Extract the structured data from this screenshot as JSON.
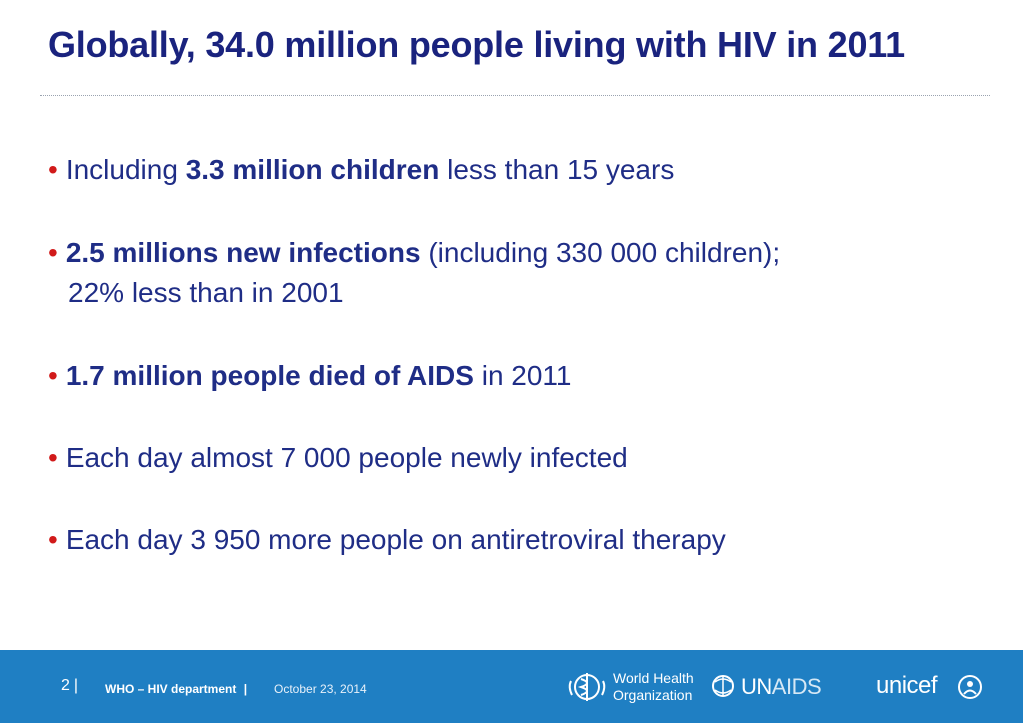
{
  "slide": {
    "title": "Globally, 34.0 million people living with HIV in 2011"
  },
  "bullets": [
    {
      "pre": "Including ",
      "bold": "3.3 million children",
      "post": " less than 15 years",
      "cont": ""
    },
    {
      "pre": "",
      "bold": "2.5 millions new infections",
      "post": " (including 330 000 children);",
      "cont": "22% less than in 2001"
    },
    {
      "pre": "",
      "bold": "1.7 million people died of AIDS",
      "post": " in 2011",
      "cont": ""
    },
    {
      "pre": "Each day almost 7 000 people newly infected",
      "bold": "",
      "post": "",
      "cont": ""
    },
    {
      "pre": "Each day 3 950 more people on antiretroviral therapy",
      "bold": "",
      "post": "",
      "cont": ""
    }
  ],
  "bullet_glyph": "•",
  "footer": {
    "page_number": "2",
    "separator": "|",
    "department": "WHO – HIV department",
    "date": "October 23, 2014",
    "who_line1": "World Health",
    "who_line2": "Organization",
    "unaids_a": "UN",
    "unaids_b": "AIDS",
    "unicef": "unicef"
  },
  "colors": {
    "title": "#1a237e",
    "bullet": "#d11a1a",
    "text": "#1f2d86",
    "footer_bg": "#1f7fc3"
  },
  "icons": [
    "who-emblem-icon",
    "unaids-emblem-icon",
    "unicef-emblem-icon"
  ]
}
